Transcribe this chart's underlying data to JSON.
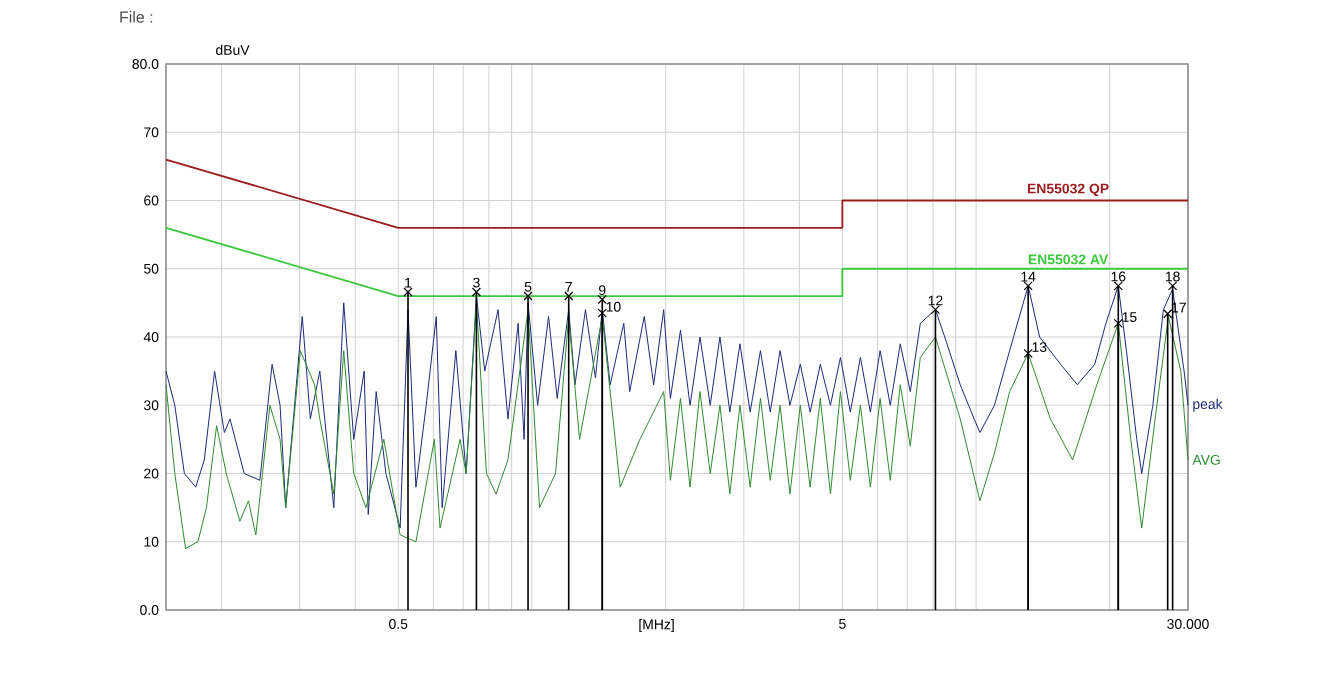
{
  "chart_data": {
    "type": "line",
    "xlabel": "[MHz]",
    "ylabel": "dBuV",
    "log": "x",
    "grid": true,
    "legend": false,
    "marker": "none",
    "xlim": [
      0.15,
      30
    ],
    "xticks": [
      0.5,
      5,
      {
        "value": 30,
        "label": "30.000"
      }
    ],
    "ylim": [
      0,
      80
    ],
    "yticks": [
      {
        "value": 0,
        "label": "0.0"
      },
      10,
      20,
      30,
      40,
      50,
      60,
      70,
      {
        "value": 80,
        "label": "80.0"
      }
    ],
    "series": [
      {
        "name": "EN55032  QP",
        "color": "#9b1c1c",
        "x": [
          0.15,
          0.5,
          5,
          5,
          30
        ],
        "values": [
          66,
          56,
          56,
          60,
          60
        ]
      },
      {
        "name": "EN55032  AV",
        "color": "#3cc83c",
        "x": [
          0.15,
          0.5,
          5,
          5,
          30
        ],
        "values": [
          56,
          46,
          46,
          50,
          50
        ]
      },
      {
        "name": "peak",
        "color": "#1c2a7a",
        "x": [
          0.15,
          0.157,
          0.165,
          0.175,
          0.183,
          0.193,
          0.203,
          0.209,
          0.225,
          0.244,
          0.26,
          0.271,
          0.279,
          0.304,
          0.317,
          0.333,
          0.358,
          0.377,
          0.397,
          0.419,
          0.428,
          0.446,
          0.469,
          0.505,
          0.526,
          0.548,
          0.578,
          0.609,
          0.628,
          0.674,
          0.711,
          0.75,
          0.783,
          0.839,
          0.883,
          0.931,
          0.96,
          0.98,
          1.03,
          1.09,
          1.14,
          1.21,
          1.25,
          1.32,
          1.39,
          1.44,
          1.5,
          1.61,
          1.66,
          1.79,
          1.88,
          1.98,
          2.05,
          2.16,
          2.27,
          2.39,
          2.52,
          2.65,
          2.79,
          2.94,
          3.1,
          3.27,
          3.44,
          3.62,
          3.81,
          4.02,
          4.23,
          4.46,
          4.7,
          4.95,
          5.21,
          5.49,
          5.78,
          6.08,
          6.41,
          6.75,
          7.11,
          7.49,
          8.1,
          8.5,
          9.21,
          9.9,
          10.2,
          11.0,
          11.9,
          13.1,
          13.9,
          15.5,
          16.9,
          18.5,
          19.6,
          20.9,
          21.8,
          23.0,
          23.6,
          25.0,
          26.4,
          27.7,
          29.4,
          30
        ],
        "values": [
          35,
          30,
          20,
          18,
          22,
          35,
          26,
          28,
          20,
          19,
          36,
          30,
          15,
          43,
          28,
          35,
          15,
          45,
          25,
          35,
          14,
          32,
          20,
          12,
          44,
          18,
          30,
          43,
          15,
          38,
          20,
          46,
          35,
          44,
          28,
          42,
          25,
          45,
          30,
          43,
          31,
          44,
          33,
          44,
          34,
          44,
          33,
          42,
          32,
          43,
          33,
          44,
          31,
          41,
          30,
          40,
          30,
          40,
          29,
          39,
          29,
          38,
          29,
          38,
          30,
          36,
          29,
          36,
          30,
          37,
          29,
          37,
          29,
          38,
          30,
          39,
          32,
          42,
          44,
          40,
          33,
          28,
          26,
          30,
          38,
          47.5,
          40,
          36,
          33,
          36,
          42,
          47.5,
          38,
          25,
          20,
          30,
          44,
          47,
          35,
          30
        ]
      },
      {
        "name": "AVG",
        "color": "#2e8b2e",
        "x": [
          0.15,
          0.157,
          0.166,
          0.177,
          0.185,
          0.195,
          0.205,
          0.22,
          0.23,
          0.239,
          0.257,
          0.271,
          0.279,
          0.301,
          0.324,
          0.333,
          0.358,
          0.377,
          0.397,
          0.423,
          0.464,
          0.505,
          0.526,
          0.548,
          0.603,
          0.621,
          0.689,
          0.711,
          0.75,
          0.79,
          0.83,
          0.883,
          0.98,
          1.04,
          1.13,
          1.21,
          1.28,
          1.44,
          1.58,
          1.75,
          1.98,
          2.05,
          2.16,
          2.27,
          2.39,
          2.52,
          2.65,
          2.79,
          2.94,
          3.1,
          3.27,
          3.44,
          3.62,
          3.81,
          4.02,
          4.23,
          4.46,
          4.7,
          4.95,
          5.21,
          5.49,
          5.78,
          6.08,
          6.41,
          6.75,
          7.11,
          7.49,
          8.1,
          9.21,
          10.2,
          11.0,
          11.9,
          13.1,
          14.7,
          16.5,
          18.7,
          20.9,
          22.3,
          23.6,
          25.3,
          27.1,
          28.9,
          30
        ],
        "values": [
          33,
          20,
          9,
          10,
          15,
          27,
          20,
          13,
          16,
          11,
          30,
          25,
          15,
          38,
          33,
          28,
          17,
          38,
          20,
          15,
          25,
          11,
          null,
          10,
          25,
          12,
          25,
          20,
          45,
          20,
          17,
          22,
          44,
          15,
          20,
          43,
          25,
          43,
          18,
          25,
          32,
          19,
          31,
          18,
          32,
          20,
          30,
          17,
          30,
          18,
          31,
          19,
          30,
          17,
          30,
          18,
          31,
          17,
          32,
          19,
          30,
          18,
          31,
          19,
          33,
          24,
          37,
          40,
          28,
          16,
          23,
          32,
          37.6,
          28,
          22,
          33,
          42,
          25,
          12,
          28,
          43,
          35,
          22
        ]
      }
    ],
    "annotations": [
      "File :",
      {
        "text": "1",
        "x": 0.526,
        "y": 46.6
      },
      {
        "text": "3",
        "x": 0.75,
        "y": 46.6
      },
      {
        "text": "5",
        "x": 0.98,
        "y": 46
      },
      {
        "text": "7",
        "x": 1.21,
        "y": 46
      },
      {
        "text": "9",
        "x": 1.44,
        "y": 45.5
      },
      {
        "text": "10",
        "x": 1.44,
        "y": 43.5
      },
      {
        "text": "12",
        "x": 8.1,
        "y": 44
      },
      {
        "text": "14",
        "x": 13.1,
        "y": 47.5
      },
      {
        "text": "13",
        "x": 13.1,
        "y": 37.6
      },
      {
        "text": "16",
        "x": 20.9,
        "y": 47.5
      },
      {
        "text": "15",
        "x": 20.9,
        "y": 42
      },
      {
        "text": "18",
        "x": 27.7,
        "y": 47.5
      },
      {
        "text": "17",
        "x": 27.0,
        "y": 43.4
      }
    ]
  }
}
